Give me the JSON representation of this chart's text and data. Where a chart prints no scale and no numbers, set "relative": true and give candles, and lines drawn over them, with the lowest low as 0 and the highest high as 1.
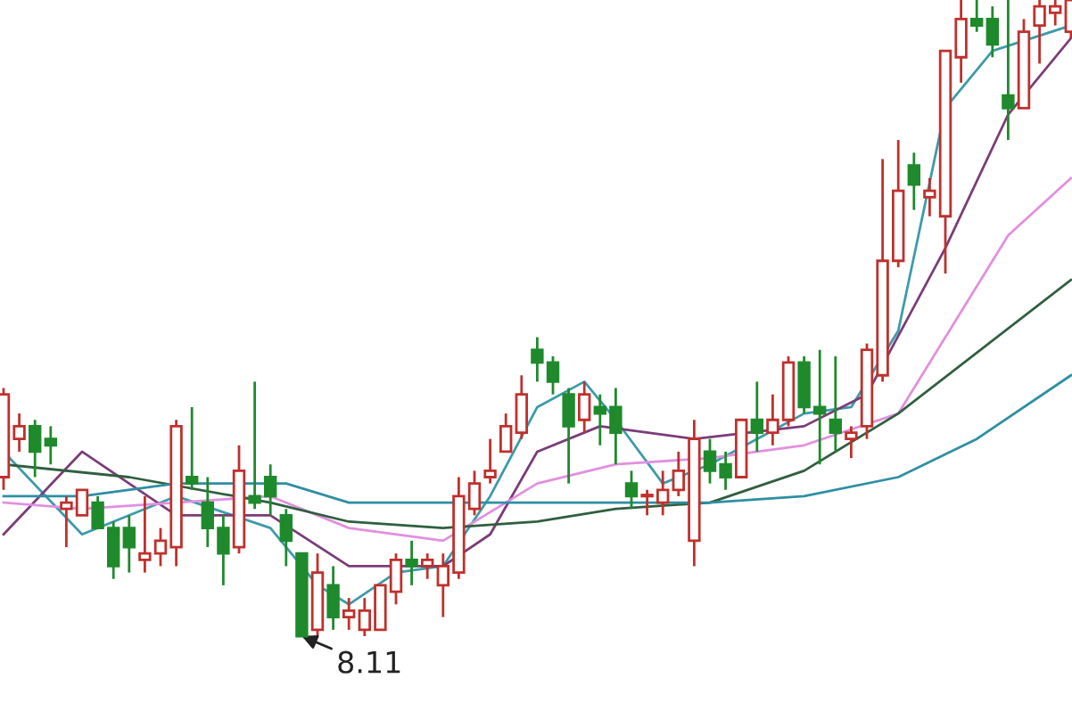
{
  "chart_data": {
    "type": "candlestick",
    "relative": true,
    "categories": [
      null,
      null,
      null,
      null,
      null,
      null,
      null,
      null,
      null,
      null,
      null,
      null,
      null,
      null,
      null,
      null,
      null,
      null,
      null,
      null,
      null,
      null,
      null,
      null,
      null,
      null,
      null,
      null,
      null,
      null,
      null,
      null,
      null,
      null,
      null,
      null,
      null,
      null,
      null,
      null,
      null,
      null,
      null,
      null,
      null,
      null,
      null,
      null,
      null,
      null,
      null,
      null,
      null,
      null,
      null,
      null,
      null,
      null,
      null,
      null,
      null,
      null,
      null,
      null,
      null,
      null,
      null,
      null,
      null
    ],
    "ohlc": [
      [
        0.25,
        0.39,
        0.23,
        0.38
      ],
      [
        0.31,
        0.35,
        0.29,
        0.33
      ],
      [
        0.33,
        0.34,
        0.25,
        0.29
      ],
      [
        0.31,
        0.33,
        0.27,
        0.3
      ],
      [
        0.2,
        0.22,
        0.14,
        0.21
      ],
      [
        0.19,
        0.23,
        0.19,
        0.23
      ],
      [
        0.21,
        0.22,
        0.17,
        0.17
      ],
      [
        0.17,
        0.18,
        0.09,
        0.11
      ],
      [
        0.17,
        0.19,
        0.1,
        0.14
      ],
      [
        0.12,
        0.22,
        0.1,
        0.13
      ],
      [
        0.13,
        0.17,
        0.11,
        0.15
      ],
      [
        0.14,
        0.34,
        0.11,
        0.33
      ],
      [
        0.25,
        0.36,
        0.23,
        0.24
      ],
      [
        0.21,
        0.25,
        0.14,
        0.17
      ],
      [
        0.17,
        0.19,
        0.08,
        0.13
      ],
      [
        0.14,
        0.3,
        0.13,
        0.26
      ],
      [
        0.22,
        0.4,
        0.2,
        0.21
      ],
      [
        0.25,
        0.27,
        0.19,
        0.22
      ],
      [
        0.19,
        0.2,
        0.11,
        0.15
      ],
      [
        0.13,
        0.13,
        0.0,
        0.0
      ],
      [
        0.01,
        0.13,
        0.0,
        0.1
      ],
      [
        0.08,
        0.11,
        0.01,
        0.03
      ],
      [
        0.03,
        0.06,
        0.01,
        0.04
      ],
      [
        0.01,
        0.06,
        0.0,
        0.04
      ],
      [
        0.01,
        0.08,
        0.01,
        0.08
      ],
      [
        0.07,
        0.13,
        0.05,
        0.12
      ],
      [
        0.12,
        0.15,
        0.08,
        0.11
      ],
      [
        0.11,
        0.13,
        0.09,
        0.12
      ],
      [
        0.08,
        0.13,
        0.03,
        0.11
      ],
      [
        0.1,
        0.25,
        0.09,
        0.22
      ],
      [
        0.2,
        0.26,
        0.19,
        0.24
      ],
      [
        0.25,
        0.31,
        0.24,
        0.26
      ],
      [
        0.29,
        0.35,
        0.29,
        0.33
      ],
      [
        0.32,
        0.41,
        0.31,
        0.38
      ],
      [
        0.45,
        0.47,
        0.4,
        0.43
      ],
      [
        0.43,
        0.44,
        0.38,
        0.4
      ],
      [
        0.38,
        0.39,
        0.24,
        0.33
      ],
      [
        0.34,
        0.4,
        0.32,
        0.38
      ],
      [
        0.36,
        0.38,
        0.3,
        0.35
      ],
      [
        0.36,
        0.39,
        0.27,
        0.32
      ],
      [
        0.24,
        0.26,
        0.2,
        0.22
      ],
      [
        0.22,
        0.23,
        0.19,
        0.22
      ],
      [
        0.21,
        0.26,
        0.19,
        0.23
      ],
      [
        0.23,
        0.29,
        0.22,
        0.26
      ],
      [
        0.15,
        0.34,
        0.11,
        0.31
      ],
      [
        0.29,
        0.31,
        0.24,
        0.26
      ],
      [
        0.27,
        0.29,
        0.23,
        0.25
      ],
      [
        0.25,
        0.34,
        0.25,
        0.34
      ],
      [
        0.34,
        0.4,
        0.29,
        0.32
      ],
      [
        0.32,
        0.38,
        0.3,
        0.34
      ],
      [
        0.34,
        0.44,
        0.33,
        0.43
      ],
      [
        0.43,
        0.44,
        0.35,
        0.36
      ],
      [
        0.36,
        0.45,
        0.27,
        0.35
      ],
      [
        0.34,
        0.44,
        0.29,
        0.32
      ],
      [
        0.31,
        0.33,
        0.28,
        0.32
      ],
      [
        0.33,
        0.46,
        0.31,
        0.45
      ],
      [
        0.41,
        0.75,
        0.4,
        0.59
      ],
      [
        0.59,
        0.78,
        0.58,
        0.7
      ],
      [
        0.74,
        0.76,
        0.67,
        0.71
      ],
      [
        0.69,
        0.72,
        0.66,
        0.7
      ],
      [
        0.66,
        0.92,
        0.57,
        0.92
      ],
      [
        0.91,
        1.0,
        0.87,
        0.97
      ],
      [
        0.97,
        1.0,
        0.95,
        0.96
      ],
      [
        0.97,
        0.99,
        0.91,
        0.93
      ],
      [
        0.85,
        1.0,
        0.78,
        0.83
      ],
      [
        0.83,
        0.97,
        0.83,
        0.95
      ],
      [
        0.96,
        1.0,
        0.9,
        0.99
      ],
      [
        0.98,
        1.0,
        0.96,
        0.99
      ],
      [
        0.95,
        1.0,
        0.94,
        1.0
      ]
    ],
    "series": [
      {
        "type": "line",
        "color": "#3d9bab",
        "values": [
          0.29,
          null,
          null,
          null,
          null,
          0.16,
          null,
          null,
          null,
          null,
          null,
          0.22,
          null,
          null,
          null,
          null,
          null,
          0.17,
          null,
          null,
          0.08,
          null,
          0.05,
          null,
          null,
          0.1,
          null,
          null,
          0.11,
          null,
          null,
          0.22,
          null,
          null,
          0.36,
          null,
          null,
          0.4,
          null,
          0.34,
          null,
          null,
          0.24,
          null,
          null,
          0.27,
          null,
          null,
          0.31,
          null,
          null,
          0.35,
          null,
          null,
          0.36,
          null,
          null,
          0.48,
          null,
          null,
          0.83,
          null,
          null,
          0.92,
          null,
          null,
          null,
          null,
          0.96
        ]
      },
      {
        "type": "line",
        "color": "#7b3b78",
        "values": [
          0.16,
          null,
          null,
          null,
          null,
          0.29,
          null,
          null,
          null,
          null,
          null,
          0.19,
          null,
          null,
          null,
          null,
          null,
          0.19,
          null,
          null,
          null,
          null,
          0.11,
          null,
          null,
          null,
          null,
          null,
          0.11,
          null,
          null,
          0.16,
          null,
          null,
          0.29,
          null,
          null,
          null,
          0.33,
          null,
          null,
          null,
          null,
          null,
          0.31,
          null,
          null,
          null,
          null,
          null,
          null,
          0.33,
          null,
          null,
          null,
          0.38,
          null,
          null,
          null,
          null,
          0.61,
          null,
          null,
          null,
          0.82,
          null,
          null,
          null,
          0.94
        ]
      },
      {
        "type": "line",
        "color": "#e28fe0",
        "values": [
          0.21,
          null,
          null,
          null,
          null,
          0.2,
          null,
          null,
          null,
          null,
          null,
          0.21,
          null,
          null,
          null,
          null,
          null,
          0.22,
          null,
          null,
          null,
          null,
          0.17,
          null,
          null,
          null,
          null,
          null,
          0.15,
          null,
          null,
          null,
          null,
          null,
          0.24,
          null,
          null,
          null,
          null,
          0.27,
          null,
          null,
          null,
          null,
          null,
          0.28,
          null,
          null,
          null,
          null,
          null,
          0.3,
          null,
          null,
          null,
          null,
          null,
          0.35,
          null,
          null,
          null,
          null,
          null,
          null,
          0.63,
          null,
          null,
          null,
          0.72
        ]
      },
      {
        "type": "line",
        "color": "#2f5f3f",
        "values": [
          0.27,
          null,
          null,
          null,
          null,
          null,
          null,
          null,
          0.25,
          null,
          null,
          null,
          null,
          null,
          null,
          null,
          null,
          0.21,
          null,
          null,
          null,
          null,
          0.18,
          null,
          null,
          null,
          null,
          null,
          0.17,
          null,
          null,
          null,
          null,
          null,
          0.18,
          null,
          null,
          null,
          null,
          0.2,
          null,
          null,
          null,
          null,
          null,
          0.21,
          null,
          null,
          null,
          null,
          null,
          0.26,
          null,
          null,
          null,
          null,
          null,
          0.35,
          null,
          null,
          null,
          null,
          null,
          null,
          null,
          null,
          null,
          null,
          0.56
        ]
      },
      {
        "type": "line",
        "color": "#2e8fa3",
        "values": [
          0.22,
          null,
          null,
          null,
          null,
          0.22,
          null,
          null,
          null,
          null,
          null,
          0.24,
          null,
          null,
          null,
          null,
          null,
          null,
          0.24,
          null,
          null,
          null,
          0.21,
          null,
          null,
          null,
          null,
          null,
          null,
          null,
          null,
          null,
          null,
          null,
          0.21,
          null,
          null,
          null,
          null,
          null,
          null,
          null,
          null,
          null,
          null,
          0.21,
          null,
          null,
          null,
          null,
          null,
          0.22,
          null,
          null,
          null,
          null,
          null,
          0.25,
          null,
          null,
          null,
          null,
          0.31,
          null,
          null,
          null,
          null,
          null,
          0.41
        ]
      }
    ],
    "annotations": [
      {
        "text": "8.11",
        "y": 0
      }
    ]
  }
}
